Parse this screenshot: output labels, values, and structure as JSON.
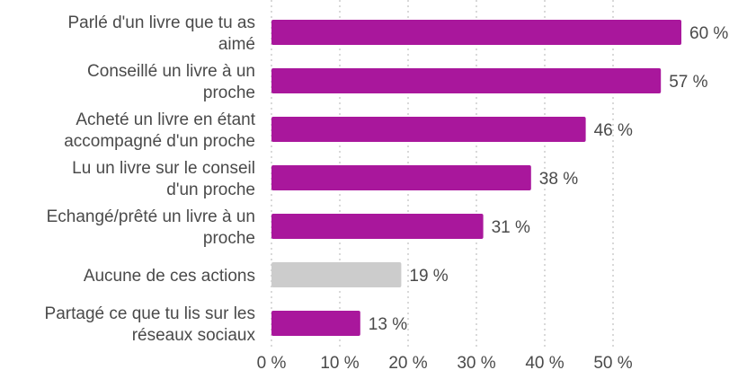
{
  "chart_data": {
    "type": "bar",
    "orientation": "horizontal",
    "categories": [
      [
        "Parlé d'un livre que tu as",
        "aimé"
      ],
      [
        "Conseillé un livre à un",
        "proche"
      ],
      [
        "Acheté un livre en étant",
        "accompagné d'un proche"
      ],
      [
        "Lu un livre sur le conseil",
        "d'un proche"
      ],
      [
        "Echangé/prêté un livre à un",
        "proche"
      ],
      [
        "Aucune de ces actions"
      ],
      [
        "Partagé ce que tu lis sur les",
        "réseaux sociaux"
      ]
    ],
    "values": [
      60,
      57,
      46,
      38,
      31,
      19,
      13
    ],
    "value_labels": [
      "60 %",
      "57 %",
      "46 %",
      "38 %",
      "31 %",
      "19 %",
      "13 %"
    ],
    "bar_colors": [
      "#a9179c",
      "#a9179c",
      "#a9179c",
      "#a9179c",
      "#a9179c",
      "#cccccc",
      "#a9179c"
    ],
    "xaxis": {
      "ticks": [
        0,
        10,
        20,
        30,
        40,
        50
      ],
      "tick_labels": [
        "0 %",
        "10 %",
        "20 %",
        "30 %",
        "40 %",
        "50 %"
      ],
      "range": [
        0,
        60
      ]
    },
    "grid": "vertical-dotted",
    "legend": "none",
    "title": "",
    "xlabel": "",
    "ylabel": ""
  }
}
